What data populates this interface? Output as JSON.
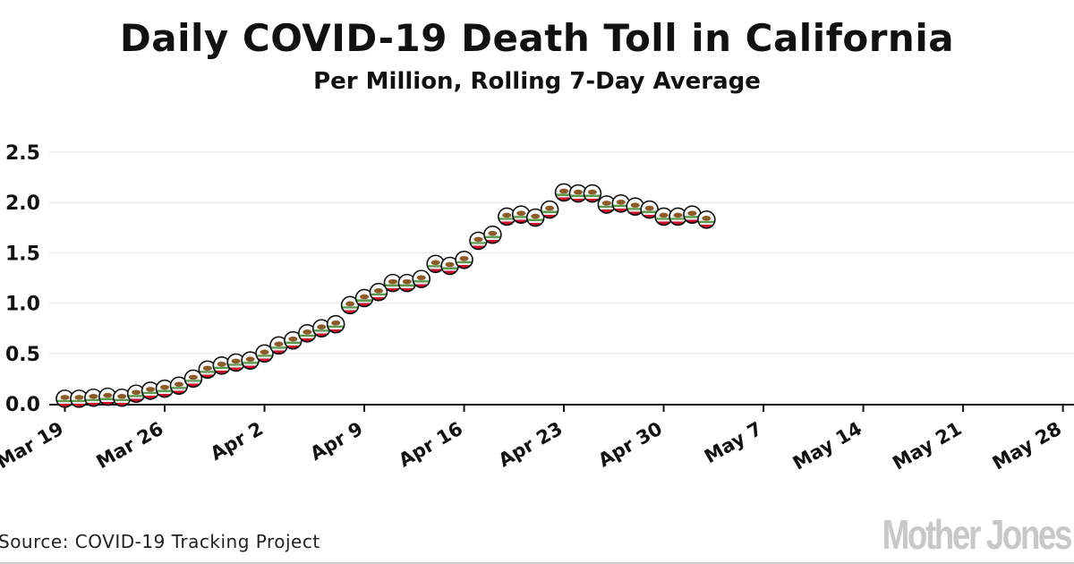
{
  "chart_data": {
    "type": "scatter",
    "title": "Daily COVID-19 Death Toll in California",
    "subtitle": "Per Million, Rolling 7-Day Average",
    "source": "Source: COVID-19 Tracking Project",
    "logo": "Mother Jones",
    "xlabel": "",
    "ylabel": "",
    "xlim": [
      "2020-03-19",
      "2020-05-28"
    ],
    "ylim": [
      0,
      2.5
    ],
    "grid": true,
    "x_tick_labels": [
      "Mar 19",
      "Mar 26",
      "Apr 2",
      "Apr 9",
      "Apr 16",
      "Apr 23",
      "Apr 30",
      "May 7",
      "May 14",
      "May 21",
      "May 28"
    ],
    "y_tick_labels": [
      "0.0",
      "0.5",
      "1.0",
      "1.5",
      "2.0",
      "2.5"
    ],
    "y_ticks": [
      0,
      0.5,
      1.0,
      1.5,
      2.0,
      2.5
    ],
    "marker": "california-flag-bear-icon",
    "colors": {
      "grid": "#e6e6e6",
      "marker_green": "#5a9a50",
      "marker_red": "#c8102e",
      "marker_bear": "#8b5a2b"
    },
    "x": [
      "Mar 19",
      "Mar 20",
      "Mar 21",
      "Mar 22",
      "Mar 23",
      "Mar 24",
      "Mar 25",
      "Mar 26",
      "Mar 27",
      "Mar 28",
      "Mar 29",
      "Mar 30",
      "Mar 31",
      "Apr 1",
      "Apr 2",
      "Apr 3",
      "Apr 4",
      "Apr 5",
      "Apr 6",
      "Apr 7",
      "Apr 8",
      "Apr 9",
      "Apr 10",
      "Apr 11",
      "Apr 12",
      "Apr 13",
      "Apr 14",
      "Apr 15",
      "Apr 16",
      "Apr 17",
      "Apr 18",
      "Apr 19",
      "Apr 20",
      "Apr 21",
      "Apr 22",
      "Apr 23",
      "Apr 24",
      "Apr 25",
      "Apr 26",
      "Apr 27",
      "Apr 28",
      "Apr 29",
      "Apr 30",
      "May 1",
      "May 2",
      "May 3"
    ],
    "values": [
      0.05,
      0.05,
      0.06,
      0.07,
      0.06,
      0.1,
      0.13,
      0.15,
      0.18,
      0.25,
      0.34,
      0.38,
      0.41,
      0.43,
      0.5,
      0.58,
      0.63,
      0.7,
      0.75,
      0.79,
      0.98,
      1.05,
      1.11,
      1.2,
      1.2,
      1.24,
      1.39,
      1.37,
      1.43,
      1.62,
      1.68,
      1.86,
      1.88,
      1.85,
      1.93,
      2.1,
      2.09,
      2.09,
      1.98,
      1.99,
      1.96,
      1.93,
      1.86,
      1.86,
      1.88,
      1.83
    ]
  }
}
